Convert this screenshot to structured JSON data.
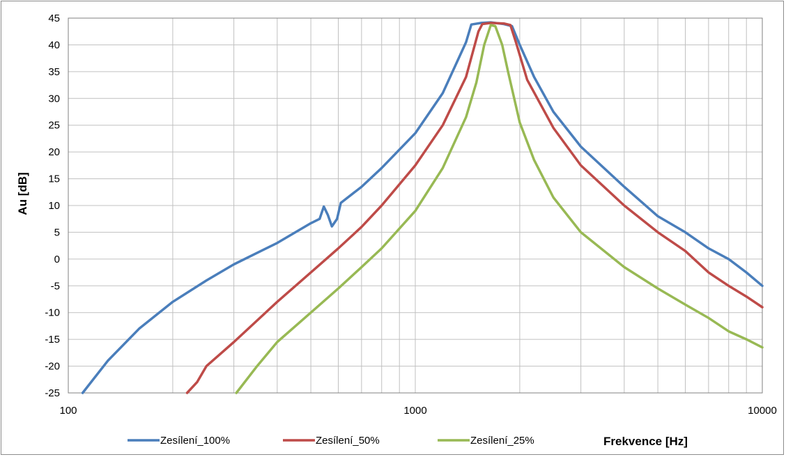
{
  "chart_data": {
    "type": "line",
    "xscale": "log",
    "xlim": [
      100,
      10000
    ],
    "ylim": [
      -25,
      45
    ],
    "xlabel": "Frekvence [Hz]",
    "ylabel": "Au [dB]",
    "grid": true,
    "legend_position": "bottom",
    "x_ticks": [
      "100",
      "1000",
      "10000"
    ],
    "y_ticks": [
      "45",
      "40",
      "35",
      "30",
      "25",
      "20",
      "15",
      "10",
      "5",
      "0",
      "-5",
      "-10",
      "-15",
      "-20",
      "-25"
    ],
    "series": [
      {
        "name": "Zesílení_100%",
        "color": "#4a7ebb",
        "x": [
          110,
          130,
          160,
          200,
          250,
          300,
          400,
          500,
          530,
          545,
          560,
          575,
          595,
          610,
          700,
          800,
          1000,
          1200,
          1400,
          1450,
          1550,
          1650,
          1800,
          1900,
          2000,
          2200,
          2500,
          3000,
          4000,
          5000,
          6000,
          7000,
          8000,
          9000,
          10000
        ],
        "y": [
          -25,
          -19,
          -13,
          -8,
          -4,
          -1,
          3,
          6.7,
          7.5,
          9.8,
          8.2,
          6.1,
          7.5,
          10.5,
          13.5,
          17,
          23.5,
          31,
          40.5,
          43.8,
          44.1,
          44.2,
          43.9,
          43.5,
          40,
          34,
          27.5,
          21,
          13.5,
          8,
          5,
          2,
          0,
          -2.5,
          -5
        ]
      },
      {
        "name": "Zesílení_50%",
        "color": "#be4b48",
        "x": [
          220,
          235,
          250,
          300,
          400,
          500,
          600,
          700,
          800,
          1000,
          1200,
          1400,
          1520,
          1560,
          1650,
          1800,
          1880,
          1950,
          2100,
          2500,
          3000,
          4000,
          5000,
          6000,
          7000,
          8000,
          9000,
          10000
        ],
        "y": [
          -25,
          -23,
          -20,
          -15.5,
          -8,
          -2.5,
          2,
          6,
          10,
          17.5,
          25,
          34,
          42.5,
          43.9,
          44.1,
          44,
          43.7,
          40.5,
          33.5,
          24.5,
          17.5,
          10,
          5,
          1.5,
          -2.5,
          -5,
          -7,
          -9
        ]
      },
      {
        "name": "Zesílení_25%",
        "color": "#98b954",
        "x": [
          305,
          350,
          400,
          500,
          600,
          700,
          800,
          1000,
          1200,
          1400,
          1500,
          1580,
          1650,
          1700,
          1780,
          1850,
          2000,
          2200,
          2500,
          3000,
          4000,
          5000,
          6000,
          7000,
          8000,
          9000,
          10000
        ],
        "y": [
          -25,
          -20,
          -15.5,
          -10,
          -5.5,
          -1.5,
          2,
          9,
          17,
          26.5,
          33,
          40,
          43.7,
          43.5,
          40,
          35,
          25.5,
          18.5,
          11.5,
          5,
          -1.5,
          -5.5,
          -8.5,
          -11,
          -13.5,
          -15,
          -16.5
        ]
      }
    ]
  }
}
